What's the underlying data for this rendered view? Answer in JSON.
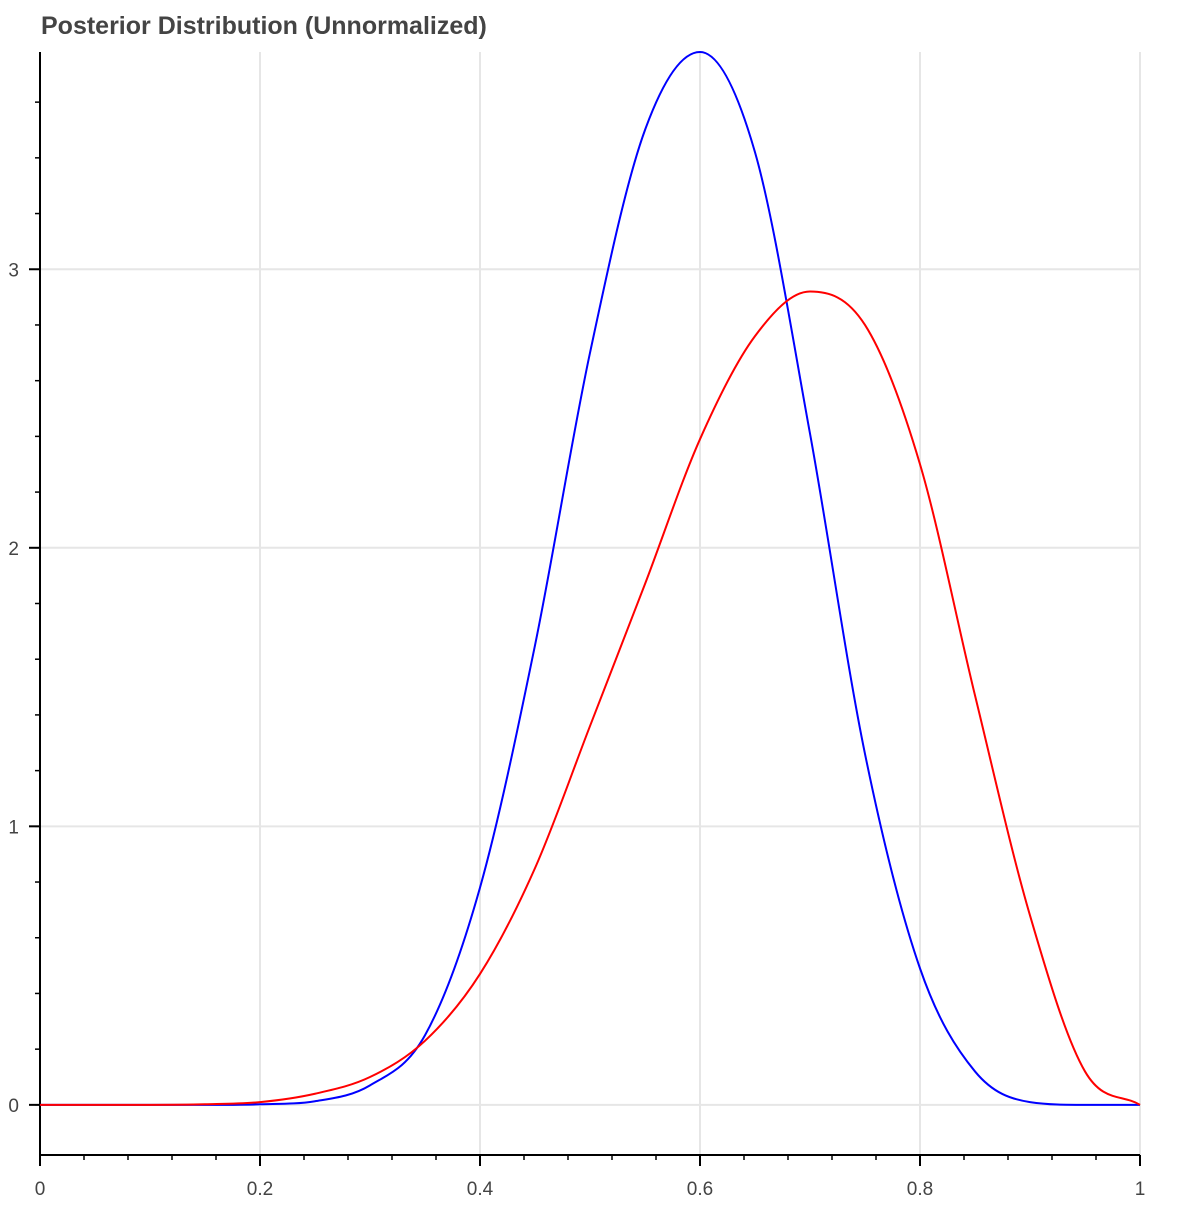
{
  "chart_data": {
    "type": "line",
    "title": "Posterior Distribution (Unnormalized)",
    "xlabel": "",
    "ylabel": "",
    "xlim": [
      0,
      1
    ],
    "ylim": [
      -0.18,
      3.78
    ],
    "x_ticks": [
      {
        "value": 0,
        "label": "0"
      },
      {
        "value": 0.2,
        "label": "0.2"
      },
      {
        "value": 0.4,
        "label": "0.4"
      },
      {
        "value": 0.6,
        "label": "0.6"
      },
      {
        "value": 0.8,
        "label": "0.8"
      },
      {
        "value": 1,
        "label": "1"
      }
    ],
    "y_ticks": [
      {
        "value": 0,
        "label": "0"
      },
      {
        "value": 1,
        "label": "1"
      },
      {
        "value": 2,
        "label": "2"
      },
      {
        "value": 3,
        "label": "3"
      }
    ],
    "x_minor_step": 0.04,
    "y_minor_step": 0.2,
    "grid": true,
    "legend": "none",
    "x": [
      0,
      0.05,
      0.1,
      0.15,
      0.2,
      0.25,
      0.3,
      0.35,
      0.4,
      0.45,
      0.5,
      0.55,
      0.6,
      0.65,
      0.7,
      0.75,
      0.8,
      0.85,
      0.9,
      0.95,
      1
    ],
    "series": [
      {
        "color": "#0000ff",
        "values": [
          0,
          0,
          0,
          0,
          0.002,
          0.013,
          0.07,
          0.25,
          0.78,
          1.65,
          2.7,
          3.5,
          3.78,
          3.42,
          2.41,
          1.26,
          0.49,
          0.12,
          0.01,
          0,
          0
        ]
      },
      {
        "color": "#ff0000",
        "values": [
          0,
          0,
          0,
          0.002,
          0.01,
          0.04,
          0.1,
          0.23,
          0.47,
          0.85,
          1.36,
          1.87,
          2.39,
          2.76,
          2.92,
          2.8,
          2.3,
          1.47,
          0.68,
          0.12,
          0
        ]
      }
    ]
  }
}
